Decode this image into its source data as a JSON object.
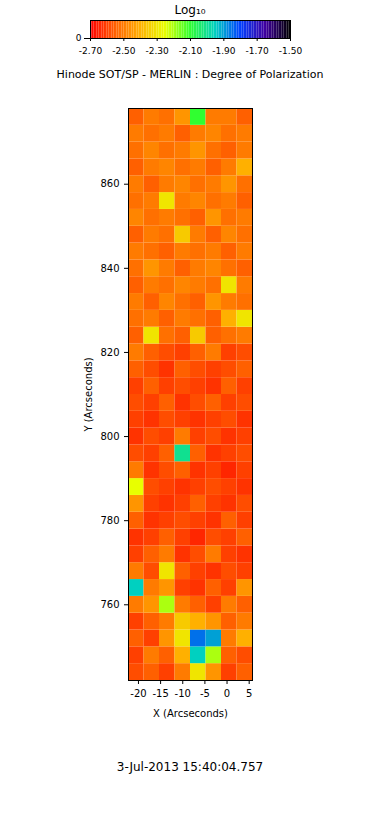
{
  "chart_data": {
    "type": "heatmap",
    "title": "Hinode SOT/SP - MERLIN : Degree of Polarization",
    "x_label": "X (Arcseconds)",
    "y_label": "Y (Arcseconds)",
    "caption": "3-Jul-2013 15:40:04.757",
    "xlim": [
      -22.25,
      5.75
    ],
    "ylim": [
      742,
      878
    ],
    "xticks": [
      -20,
      -15,
      -10,
      -5,
      0,
      5
    ],
    "yticks": [
      760,
      780,
      800,
      820,
      840,
      860
    ],
    "colorbar": {
      "label": "Log₁₀",
      "range": [
        -2.7,
        -1.5
      ],
      "ticks": [
        {
          "value": -2.7,
          "label": "-2.70"
        },
        {
          "value": -2.5,
          "label": "-2.50"
        },
        {
          "value": -2.3,
          "label": "-2.30"
        },
        {
          "value": -2.1,
          "label": "-2.10"
        },
        {
          "value": -1.9,
          "label": "-1.90"
        },
        {
          "value": -1.7,
          "label": "-1.70"
        },
        {
          "value": -1.5,
          "label": "-1.50"
        }
      ]
    },
    "cells": {
      "x": [
        -20.5,
        -17,
        -13.5,
        -10,
        -6.5,
        -3,
        0.5,
        4
      ],
      "y": [
        744,
        748,
        752,
        756,
        760,
        764,
        768,
        772,
        776,
        780,
        784,
        788,
        792,
        796,
        800,
        804,
        808,
        812,
        816,
        820,
        824,
        828,
        832,
        836,
        840,
        844,
        848,
        852,
        856,
        860,
        864,
        868,
        872,
        876
      ],
      "values": [
        [
          -2.58,
          -2.55,
          -2.6,
          -2.5,
          -2.3,
          -2.45,
          -2.6,
          -2.55
        ],
        [
          -2.6,
          -2.5,
          -2.55,
          -2.4,
          -1.95,
          -2.2,
          -2.55,
          -2.58
        ],
        [
          -2.55,
          -2.6,
          -2.45,
          -2.3,
          -1.85,
          -1.9,
          -2.5,
          -2.4
        ],
        [
          -2.6,
          -2.55,
          -2.5,
          -2.35,
          -2.4,
          -2.45,
          -2.55,
          -2.5
        ],
        [
          -2.5,
          -2.45,
          -2.2,
          -2.5,
          -2.55,
          -2.6,
          -2.5,
          -2.55
        ],
        [
          -1.95,
          -2.5,
          -2.45,
          -2.6,
          -2.62,
          -2.55,
          -2.6,
          -2.45
        ],
        [
          -2.5,
          -2.58,
          -2.3,
          -2.55,
          -2.6,
          -2.62,
          -2.58,
          -2.6
        ],
        [
          -2.6,
          -2.55,
          -2.5,
          -2.62,
          -2.58,
          -2.5,
          -2.6,
          -2.62
        ],
        [
          -2.62,
          -2.6,
          -2.55,
          -2.6,
          -2.64,
          -2.58,
          -2.6,
          -2.55
        ],
        [
          -2.55,
          -2.62,
          -2.6,
          -2.58,
          -2.6,
          -2.62,
          -2.55,
          -2.6
        ],
        [
          -2.45,
          -2.6,
          -2.62,
          -2.6,
          -2.55,
          -2.6,
          -2.62,
          -2.58
        ],
        [
          -2.25,
          -2.58,
          -2.6,
          -2.62,
          -2.6,
          -2.58,
          -2.6,
          -2.62
        ],
        [
          -2.5,
          -2.62,
          -2.58,
          -2.55,
          -2.62,
          -2.6,
          -2.64,
          -2.6
        ],
        [
          -2.58,
          -2.6,
          -2.55,
          -2.0,
          -2.55,
          -2.62,
          -2.6,
          -2.58
        ],
        [
          -2.62,
          -2.58,
          -2.6,
          -2.5,
          -2.6,
          -2.58,
          -2.62,
          -2.6
        ],
        [
          -2.6,
          -2.62,
          -2.58,
          -2.6,
          -2.62,
          -2.6,
          -2.58,
          -2.62
        ],
        [
          -2.58,
          -2.6,
          -2.55,
          -2.62,
          -2.58,
          -2.55,
          -2.6,
          -2.58
        ],
        [
          -2.6,
          -2.55,
          -2.6,
          -2.58,
          -2.6,
          -2.62,
          -2.55,
          -2.6
        ],
        [
          -2.55,
          -2.58,
          -2.62,
          -2.55,
          -2.58,
          -2.6,
          -2.58,
          -2.55
        ],
        [
          -2.5,
          -2.55,
          -2.58,
          -2.6,
          -2.55,
          -2.5,
          -2.6,
          -2.58
        ],
        [
          -2.55,
          -2.3,
          -2.52,
          -2.55,
          -2.35,
          -2.55,
          -2.52,
          -2.5
        ],
        [
          -2.52,
          -2.5,
          -2.55,
          -2.5,
          -2.52,
          -2.55,
          -2.4,
          -2.3
        ],
        [
          -2.5,
          -2.55,
          -2.48,
          -2.52,
          -2.55,
          -2.45,
          -2.5,
          -2.52
        ],
        [
          -2.55,
          -2.5,
          -2.52,
          -2.48,
          -2.5,
          -2.52,
          -2.3,
          -2.5
        ],
        [
          -2.52,
          -2.45,
          -2.5,
          -2.55,
          -2.5,
          -2.48,
          -2.52,
          -2.55
        ],
        [
          -2.5,
          -2.52,
          -2.55,
          -2.5,
          -2.52,
          -2.5,
          -2.55,
          -2.5
        ],
        [
          -2.55,
          -2.5,
          -2.52,
          -2.35,
          -2.5,
          -2.55,
          -2.48,
          -2.52
        ],
        [
          -2.48,
          -2.52,
          -2.5,
          -2.52,
          -2.55,
          -2.45,
          -2.52,
          -2.5
        ],
        [
          -2.52,
          -2.5,
          -2.3,
          -2.5,
          -2.48,
          -2.52,
          -2.5,
          -2.55
        ],
        [
          -2.5,
          -2.55,
          -2.5,
          -2.48,
          -2.52,
          -2.5,
          -2.45,
          -2.52
        ],
        [
          -2.55,
          -2.5,
          -2.48,
          -2.52,
          -2.5,
          -2.55,
          -2.5,
          -2.4
        ],
        [
          -2.52,
          -2.48,
          -2.52,
          -2.5,
          -2.45,
          -2.52,
          -2.55,
          -2.5
        ],
        [
          -2.5,
          -2.52,
          -2.5,
          -2.55,
          -2.5,
          -2.48,
          -2.52,
          -2.5
        ],
        [
          -2.55,
          -2.5,
          -2.52,
          -2.45,
          -2.1,
          -2.5,
          -2.5,
          -2.55
        ]
      ]
    }
  }
}
